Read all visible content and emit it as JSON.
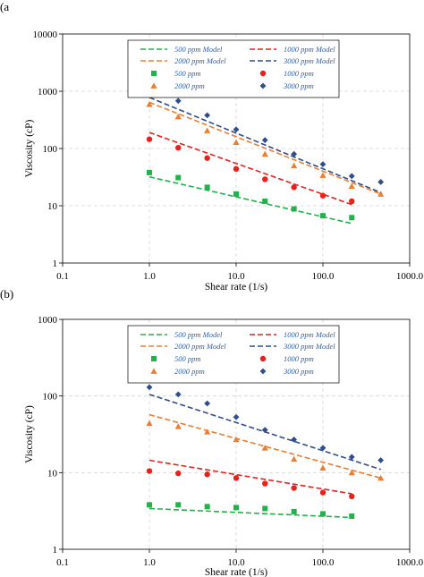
{
  "colors": {
    "500": "#22b14c",
    "1000": "#e8211c",
    "2000": "#ed7d31",
    "3000": "#2f4d8a",
    "legend_text": "#2e5fa8"
  },
  "chart_data": [
    {
      "panel_label": "(a",
      "type": "scatter",
      "xscale": "log",
      "yscale": "log",
      "xlim": [
        0.1,
        1000
      ],
      "ylim": [
        1,
        10000
      ],
      "xticks": [
        "0.1",
        "1.0",
        "10.0",
        "100.0",
        "1000.0"
      ],
      "yticks": [
        "1",
        "10",
        "100",
        "1000",
        "10000"
      ],
      "xlabel": "Shear rate (1/s)",
      "ylabel": "Viscosity (cP)",
      "grid": true,
      "legend_position": "top",
      "legend": [
        "500 ppm Model",
        "1000 ppm Model",
        "2000 ppm Model",
        "3000 ppm Model",
        "500 ppm",
        "1000 ppm",
        "2000 ppm",
        "3000 ppm"
      ],
      "series": [
        {
          "name": "500 ppm",
          "kind": "points",
          "marker": "square",
          "color_key": "500",
          "x": [
            1.0,
            2.15,
            4.64,
            10.0,
            21.5,
            46.4,
            100,
            215
          ],
          "y": [
            38,
            31,
            21,
            16,
            12,
            8.8,
            6.7,
            6.2
          ]
        },
        {
          "name": "1000 ppm",
          "kind": "points",
          "marker": "circle",
          "color_key": "1000",
          "x": [
            1.0,
            2.15,
            4.64,
            10.0,
            21.5,
            46.4,
            100,
            215
          ],
          "y": [
            145,
            103,
            68,
            44,
            29,
            21,
            15,
            12
          ]
        },
        {
          "name": "2000 ppm",
          "kind": "points",
          "marker": "triangle",
          "color_key": "2000",
          "x": [
            1.0,
            2.15,
            4.64,
            10.0,
            21.5,
            46.4,
            100,
            215,
            464
          ],
          "y": [
            590,
            360,
            205,
            128,
            80,
            50,
            34,
            22,
            16
          ]
        },
        {
          "name": "3000 ppm",
          "kind": "points",
          "marker": "diamond",
          "color_key": "3000",
          "x": [
            1.0,
            2.15,
            4.64,
            10.0,
            21.5,
            46.4,
            100,
            215,
            464
          ],
          "y": [
            1200,
            680,
            380,
            215,
            140,
            80,
            53,
            33,
            26
          ]
        },
        {
          "name": "500 ppm Model",
          "kind": "line",
          "color_key": "500",
          "x": [
            1.0,
            215
          ],
          "y": [
            32,
            4.9
          ]
        },
        {
          "name": "1000 ppm Model",
          "kind": "line",
          "color_key": "1000",
          "x": [
            1.0,
            215
          ],
          "y": [
            190,
            10.5
          ]
        },
        {
          "name": "2000 ppm Model",
          "kind": "line",
          "color_key": "2000",
          "x": [
            1.0,
            464
          ],
          "y": [
            640,
            16
          ]
        },
        {
          "name": "3000 ppm Model",
          "kind": "line",
          "color_key": "3000",
          "x": [
            1.0,
            464
          ],
          "y": [
            780,
            17
          ]
        }
      ]
    },
    {
      "panel_label": "(b)",
      "type": "scatter",
      "xscale": "log",
      "yscale": "log",
      "xlim": [
        0.1,
        1000
      ],
      "ylim": [
        1,
        1000
      ],
      "xticks": [
        "0.1",
        "1.0",
        "10.0",
        "100.0",
        "1000.0"
      ],
      "yticks": [
        "1",
        "10",
        "100",
        "1000"
      ],
      "xlabel": "Shear rate (1/s)",
      "ylabel": "Viscosity (cP)",
      "grid": true,
      "legend_position": "top",
      "legend": [
        "500 ppm Model",
        "1000 ppm Model",
        "2000 ppm Model",
        "3000 ppm Model",
        "500 ppm",
        "1000 ppm",
        "2000 ppm",
        "3000 ppm"
      ],
      "series": [
        {
          "name": "500 ppm",
          "kind": "points",
          "marker": "square",
          "color_key": "500",
          "x": [
            1.0,
            2.15,
            4.64,
            10.0,
            21.5,
            46.4,
            100,
            215
          ],
          "y": [
            3.8,
            3.8,
            3.6,
            3.5,
            3.4,
            3.1,
            2.9,
            2.7
          ]
        },
        {
          "name": "1000 ppm",
          "kind": "points",
          "marker": "circle",
          "color_key": "1000",
          "x": [
            1.0,
            2.15,
            4.64,
            10.0,
            21.5,
            46.4,
            100,
            215
          ],
          "y": [
            10.5,
            9.8,
            9.5,
            8.5,
            7.2,
            6.3,
            5.5,
            4.9
          ]
        },
        {
          "name": "2000 ppm",
          "kind": "points",
          "marker": "triangle",
          "color_key": "2000",
          "x": [
            1.0,
            2.15,
            4.64,
            10.0,
            21.5,
            46.4,
            100,
            215,
            464
          ],
          "y": [
            44,
            40,
            34,
            27,
            21,
            15,
            11.5,
            10,
            8.5
          ]
        },
        {
          "name": "3000 ppm",
          "kind": "points",
          "marker": "diamond",
          "color_key": "3000",
          "x": [
            1.0,
            2.15,
            4.64,
            10.0,
            21.5,
            46.4,
            100,
            215,
            464
          ],
          "y": [
            130,
            105,
            80,
            53,
            36,
            27,
            21,
            16,
            14.5
          ]
        },
        {
          "name": "500 ppm Model",
          "kind": "line",
          "color_key": "500",
          "x": [
            1.0,
            215
          ],
          "y": [
            3.4,
            2.6
          ]
        },
        {
          "name": "1000 ppm Model",
          "kind": "line",
          "color_key": "1000",
          "x": [
            1.0,
            215
          ],
          "y": [
            14.5,
            5.3
          ]
        },
        {
          "name": "2000 ppm Model",
          "kind": "line",
          "color_key": "2000",
          "x": [
            1.0,
            464
          ],
          "y": [
            57,
            8.5
          ]
        },
        {
          "name": "3000 ppm Model",
          "kind": "line",
          "color_key": "3000",
          "x": [
            1.0,
            464
          ],
          "y": [
            105,
            11
          ]
        }
      ]
    }
  ]
}
